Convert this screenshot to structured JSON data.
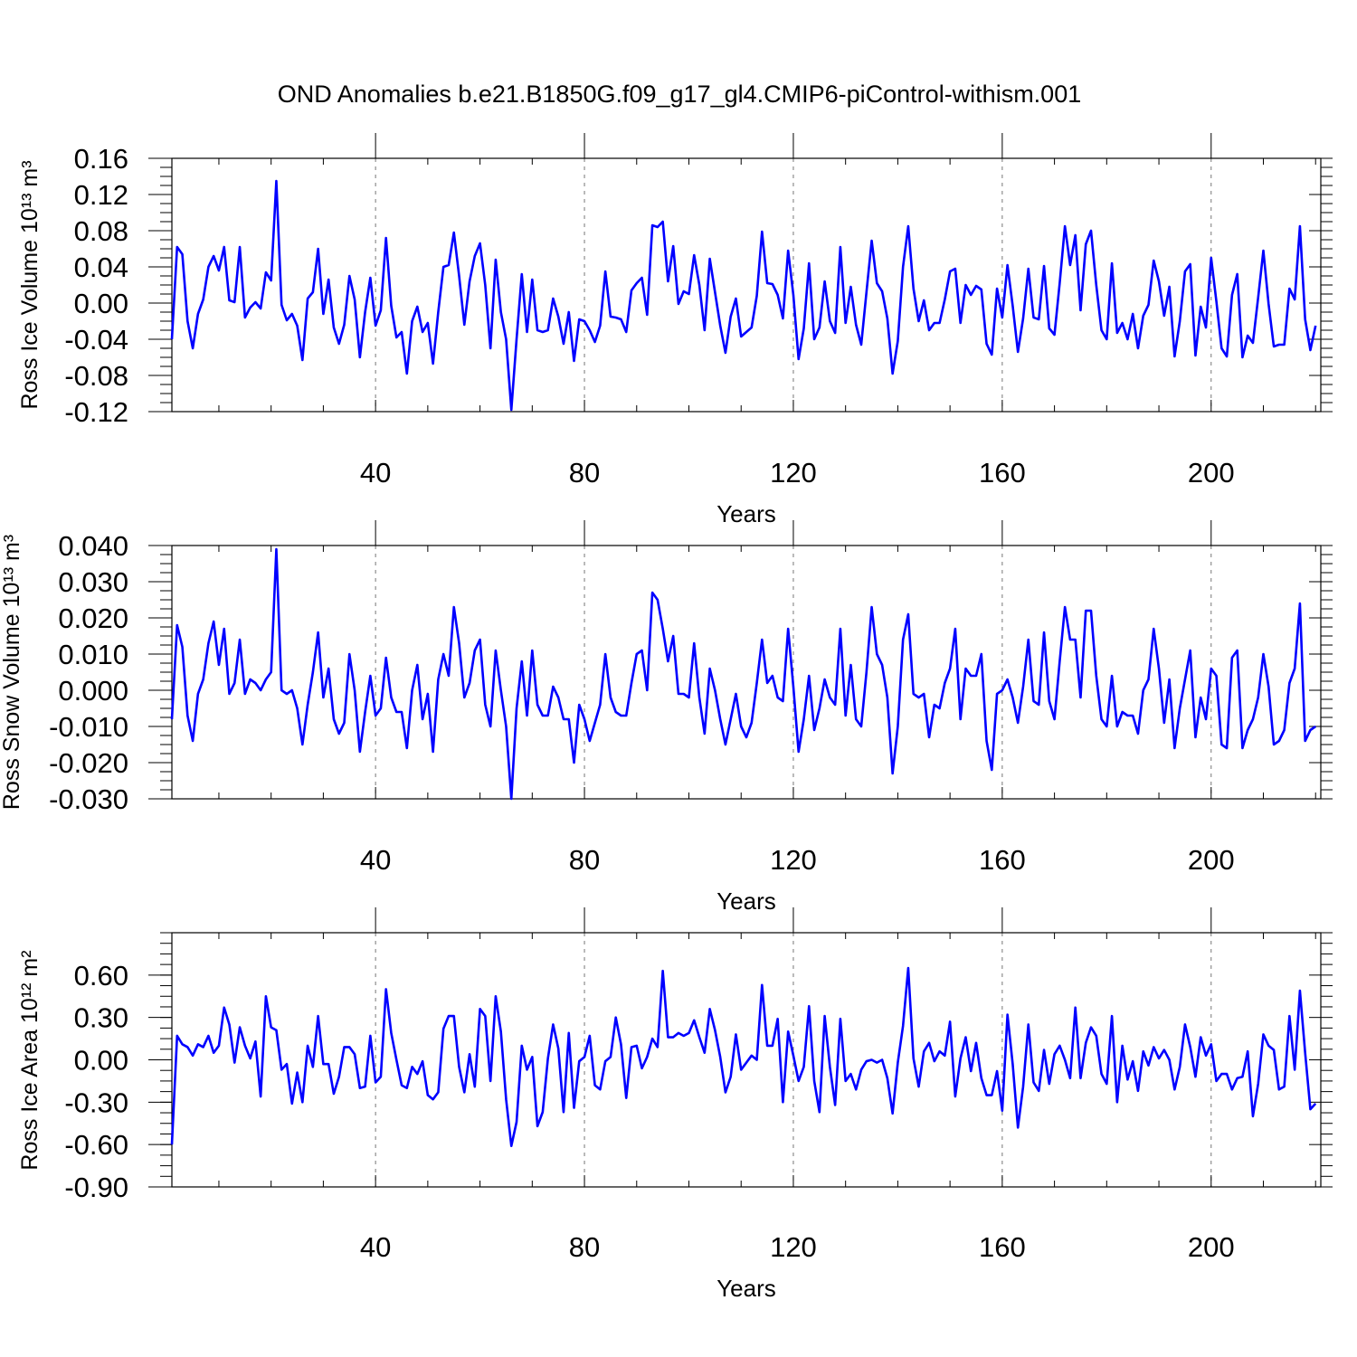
{
  "figure": {
    "title": "OND Anomalies b.e21.B1850G.f09_g17_gl4.CMIP6-piControl-withism.001"
  },
  "chart_data": [
    {
      "type": "line",
      "xlabel": "Years",
      "ylabel": "Ross Ice Volume 10¹³ m³",
      "xlim": [
        1,
        221
      ],
      "ylim": [
        -0.12,
        0.16
      ],
      "xticks": [
        40,
        80,
        120,
        160,
        200
      ],
      "xtick_labels": [
        "40",
        "80",
        "120",
        "160",
        "200"
      ],
      "yticks": [
        -0.12,
        -0.08,
        -0.04,
        0.0,
        0.04,
        0.08,
        0.12,
        0.16
      ],
      "ytick_labels": [
        "-0.12",
        "-0.08",
        "-0.04",
        "0.00",
        "0.04",
        "0.08",
        "0.12",
        "0.16"
      ],
      "grid": "vertical dashed at major x ticks",
      "series": [
        {
          "name": "Ross Ice Volume",
          "color": "#0000ff",
          "x_start": 1,
          "values": [
            -0.04,
            0.062,
            0.054,
            -0.02,
            -0.05,
            -0.012,
            0.004,
            0.04,
            0.052,
            0.036,
            0.062,
            0.003,
            0.001,
            0.062,
            -0.016,
            -0.005,
            0.001,
            -0.006,
            0.034,
            0.025,
            0.135,
            -0.002,
            -0.019,
            -0.012,
            -0.025,
            -0.063,
            0.005,
            0.012,
            0.06,
            -0.012,
            0.026,
            -0.027,
            -0.045,
            -0.024,
            0.03,
            0.004,
            -0.06,
            -0.01,
            0.028,
            -0.025,
            -0.008,
            0.072,
            -0.003,
            -0.038,
            -0.032,
            -0.078,
            -0.02,
            -0.004,
            -0.032,
            -0.022,
            -0.067,
            -0.01,
            0.04,
            0.042,
            0.078,
            0.03,
            -0.024,
            0.024,
            0.052,
            0.066,
            0.02,
            -0.05,
            0.048,
            -0.01,
            -0.04,
            -0.118,
            -0.04,
            0.032,
            -0.032,
            0.026,
            -0.03,
            -0.032,
            -0.03,
            0.005,
            -0.015,
            -0.045,
            -0.01,
            -0.064,
            -0.018,
            -0.02,
            -0.03,
            -0.043,
            -0.025,
            0.035,
            -0.015,
            -0.016,
            -0.018,
            -0.032,
            0.014,
            0.022,
            0.028,
            -0.013,
            0.086,
            0.084,
            0.09,
            0.024,
            0.063,
            -0.001,
            0.013,
            0.01,
            0.053,
            0.02,
            -0.03,
            0.049,
            0.012,
            -0.025,
            -0.055,
            -0.015,
            0.005,
            -0.037,
            -0.032,
            -0.027,
            0.008,
            0.079,
            0.022,
            0.021,
            0.009,
            -0.017,
            0.058,
            0.009,
            -0.062,
            -0.028,
            0.044,
            -0.04,
            -0.027,
            0.024,
            -0.02,
            -0.033,
            0.062,
            -0.022,
            0.018,
            -0.024,
            -0.046,
            0.012,
            0.069,
            0.022,
            0.013,
            -0.017,
            -0.078,
            -0.042,
            0.04,
            0.085,
            0.016,
            -0.02,
            0.003,
            -0.03,
            -0.022,
            -0.022,
            0.004,
            0.035,
            0.038,
            -0.022,
            0.02,
            0.009,
            0.019,
            0.015,
            -0.045,
            -0.057,
            0.016,
            -0.016,
            0.042,
            -0.003,
            -0.054,
            -0.017,
            0.038,
            -0.016,
            -0.018,
            0.041,
            -0.028,
            -0.035,
            0.022,
            0.085,
            0.042,
            0.075,
            -0.008,
            0.065,
            0.08,
            0.02,
            -0.03,
            -0.04,
            0.044,
            -0.033,
            -0.022,
            -0.04,
            -0.012,
            -0.05,
            -0.014,
            -0.002,
            0.047,
            0.024,
            -0.014,
            0.018,
            -0.059,
            -0.02,
            0.035,
            0.043,
            -0.058,
            -0.004,
            -0.027,
            0.05,
            0.002,
            -0.05,
            -0.059,
            0.009,
            0.032,
            -0.06,
            -0.036,
            -0.044,
            0.006,
            0.058,
            -0.001,
            -0.048,
            -0.046,
            -0.046,
            0.016,
            0.004,
            0.085,
            -0.018,
            -0.052,
            -0.025
          ]
        }
      ]
    },
    {
      "type": "line",
      "xlabel": "Years",
      "ylabel": "Ross Snow Volume 10¹³ m³",
      "xlim": [
        1,
        221
      ],
      "ylim": [
        -0.03,
        0.04
      ],
      "xticks": [
        40,
        80,
        120,
        160,
        200
      ],
      "xtick_labels": [
        "40",
        "80",
        "120",
        "160",
        "200"
      ],
      "yticks": [
        -0.03,
        -0.02,
        -0.01,
        0.0,
        0.01,
        0.02,
        0.03,
        0.04
      ],
      "ytick_labels": [
        "-0.030",
        "-0.020",
        "-0.010",
        "0.000",
        "0.010",
        "0.020",
        "0.030",
        "0.040"
      ],
      "grid": "vertical dashed at major x ticks",
      "series": [
        {
          "name": "Ross Snow Volume",
          "color": "#0000ff",
          "x_start": 1,
          "values": [
            -0.008,
            0.018,
            0.012,
            -0.007,
            -0.014,
            -0.001,
            0.003,
            0.013,
            0.019,
            0.007,
            0.017,
            -0.001,
            0.002,
            0.014,
            -0.001,
            0.003,
            0.002,
            0.0,
            0.003,
            0.005,
            0.039,
            0.0,
            -0.001,
            0.0,
            -0.005,
            -0.015,
            -0.004,
            0.005,
            0.016,
            -0.002,
            0.006,
            -0.008,
            -0.012,
            -0.009,
            0.01,
            0.0,
            -0.017,
            -0.006,
            0.004,
            -0.007,
            -0.005,
            0.009,
            -0.002,
            -0.006,
            -0.006,
            -0.016,
            0.0,
            0.007,
            -0.008,
            -0.001,
            -0.017,
            0.003,
            0.01,
            0.004,
            0.023,
            0.013,
            -0.002,
            0.002,
            0.011,
            0.014,
            -0.004,
            -0.01,
            0.011,
            0.0,
            -0.01,
            -0.03,
            -0.005,
            0.008,
            -0.007,
            0.011,
            -0.004,
            -0.007,
            -0.007,
            0.001,
            -0.002,
            -0.008,
            -0.008,
            -0.02,
            -0.004,
            -0.008,
            -0.014,
            -0.009,
            -0.004,
            0.01,
            -0.002,
            -0.006,
            -0.007,
            -0.007,
            0.002,
            0.01,
            0.011,
            0.0,
            0.027,
            0.025,
            0.017,
            0.008,
            0.015,
            -0.001,
            -0.001,
            -0.002,
            0.013,
            -0.002,
            -0.012,
            0.006,
            0.0,
            -0.008,
            -0.015,
            -0.008,
            -0.001,
            -0.01,
            -0.013,
            -0.009,
            0.002,
            0.014,
            0.002,
            0.004,
            -0.002,
            -0.003,
            0.017,
            0.001,
            -0.017,
            -0.008,
            0.004,
            -0.011,
            -0.005,
            0.003,
            -0.002,
            -0.004,
            0.017,
            -0.007,
            0.007,
            -0.008,
            -0.01,
            0.005,
            0.023,
            0.01,
            0.007,
            -0.002,
            -0.023,
            -0.01,
            0.014,
            0.021,
            -0.001,
            -0.002,
            -0.001,
            -0.013,
            -0.004,
            -0.005,
            0.002,
            0.006,
            0.017,
            -0.008,
            0.006,
            0.004,
            0.004,
            0.01,
            -0.014,
            -0.022,
            -0.001,
            0.0,
            0.003,
            -0.002,
            -0.009,
            0.001,
            0.014,
            -0.003,
            -0.004,
            0.016,
            -0.003,
            -0.008,
            0.008,
            0.023,
            0.014,
            0.014,
            -0.002,
            0.022,
            0.022,
            0.004,
            -0.008,
            -0.01,
            0.004,
            -0.01,
            -0.006,
            -0.007,
            -0.007,
            -0.012,
            0.0,
            0.003,
            0.017,
            0.006,
            -0.009,
            0.003,
            -0.016,
            -0.005,
            0.003,
            0.011,
            -0.013,
            -0.002,
            -0.008,
            0.006,
            0.004,
            -0.015,
            -0.016,
            0.009,
            0.011,
            -0.016,
            -0.011,
            -0.008,
            -0.002,
            0.01,
            0.001,
            -0.015,
            -0.014,
            -0.011,
            0.002,
            0.006,
            0.024,
            -0.014,
            -0.011,
            -0.01
          ]
        }
      ]
    },
    {
      "type": "line",
      "xlabel": "Years",
      "ylabel": "Ross Ice Area 10¹² m²",
      "xlim": [
        1,
        221
      ],
      "ylim": [
        -0.9,
        0.9
      ],
      "xticks": [
        40,
        80,
        120,
        160,
        200
      ],
      "xtick_labels": [
        "40",
        "80",
        "120",
        "160",
        "200"
      ],
      "yticks": [
        -0.9,
        -0.6,
        -0.3,
        0.0,
        0.3,
        0.6
      ],
      "ytick_labels": [
        "-0.90",
        "-0.60",
        "-0.30",
        "0.00",
        "0.30",
        "0.60"
      ],
      "grid": "vertical dashed at major x ticks",
      "series": [
        {
          "name": "Ross Ice Area",
          "color": "#0000ff",
          "x_start": 1,
          "values": [
            -0.6,
            0.17,
            0.11,
            0.09,
            0.03,
            0.11,
            0.09,
            0.17,
            0.05,
            0.1,
            0.37,
            0.25,
            -0.02,
            0.23,
            0.1,
            0.01,
            0.13,
            -0.26,
            0.45,
            0.23,
            0.21,
            -0.07,
            -0.03,
            -0.31,
            -0.09,
            -0.3,
            0.1,
            -0.05,
            0.31,
            -0.03,
            -0.03,
            -0.24,
            -0.12,
            0.09,
            0.09,
            0.04,
            -0.2,
            -0.19,
            0.17,
            -0.16,
            -0.12,
            0.5,
            0.19,
            0.0,
            -0.18,
            -0.2,
            -0.05,
            -0.1,
            -0.01,
            -0.25,
            -0.28,
            -0.23,
            0.22,
            0.31,
            0.31,
            -0.05,
            -0.23,
            0.04,
            -0.19,
            0.36,
            0.31,
            -0.15,
            0.45,
            0.2,
            -0.28,
            -0.61,
            -0.44,
            0.1,
            -0.07,
            0.02,
            -0.47,
            -0.37,
            0.01,
            0.25,
            0.08,
            -0.37,
            0.19,
            -0.34,
            -0.01,
            0.02,
            0.17,
            -0.18,
            -0.21,
            -0.01,
            0.02,
            0.3,
            0.11,
            -0.27,
            0.09,
            0.1,
            -0.06,
            0.02,
            0.15,
            0.09,
            0.63,
            0.16,
            0.16,
            0.19,
            0.17,
            0.19,
            0.28,
            0.16,
            0.05,
            0.36,
            0.21,
            0.02,
            -0.23,
            -0.12,
            0.18,
            -0.07,
            -0.02,
            0.03,
            0.0,
            0.53,
            0.1,
            0.1,
            0.29,
            -0.3,
            0.2,
            0.03,
            -0.15,
            -0.05,
            0.38,
            -0.15,
            -0.37,
            0.31,
            -0.05,
            -0.32,
            0.29,
            -0.15,
            -0.1,
            -0.21,
            -0.07,
            -0.01,
            0.0,
            -0.02,
            0.0,
            -0.13,
            -0.38,
            -0.02,
            0.24,
            0.65,
            0.01,
            -0.19,
            0.06,
            0.12,
            -0.01,
            0.06,
            0.03,
            0.27,
            -0.26,
            0.01,
            0.16,
            -0.08,
            0.12,
            -0.13,
            -0.25,
            -0.25,
            -0.08,
            -0.36,
            0.32,
            -0.03,
            -0.48,
            -0.19,
            0.25,
            -0.16,
            -0.22,
            0.07,
            -0.17,
            0.04,
            0.1,
            0.0,
            -0.13,
            0.37,
            -0.13,
            0.12,
            0.23,
            0.17,
            -0.1,
            -0.17,
            0.31,
            -0.3,
            0.1,
            -0.14,
            -0.01,
            -0.22,
            0.06,
            -0.04,
            0.09,
            0.01,
            0.07,
            0.0,
            -0.21,
            -0.05,
            0.25,
            0.09,
            -0.12,
            0.16,
            0.03,
            0.11,
            -0.15,
            -0.1,
            -0.1,
            -0.21,
            -0.13,
            -0.12,
            0.06,
            -0.4,
            -0.17,
            0.18,
            0.1,
            0.07,
            -0.21,
            -0.19,
            0.31,
            -0.07,
            0.49,
            0.05,
            -0.35,
            -0.31
          ]
        }
      ]
    }
  ]
}
